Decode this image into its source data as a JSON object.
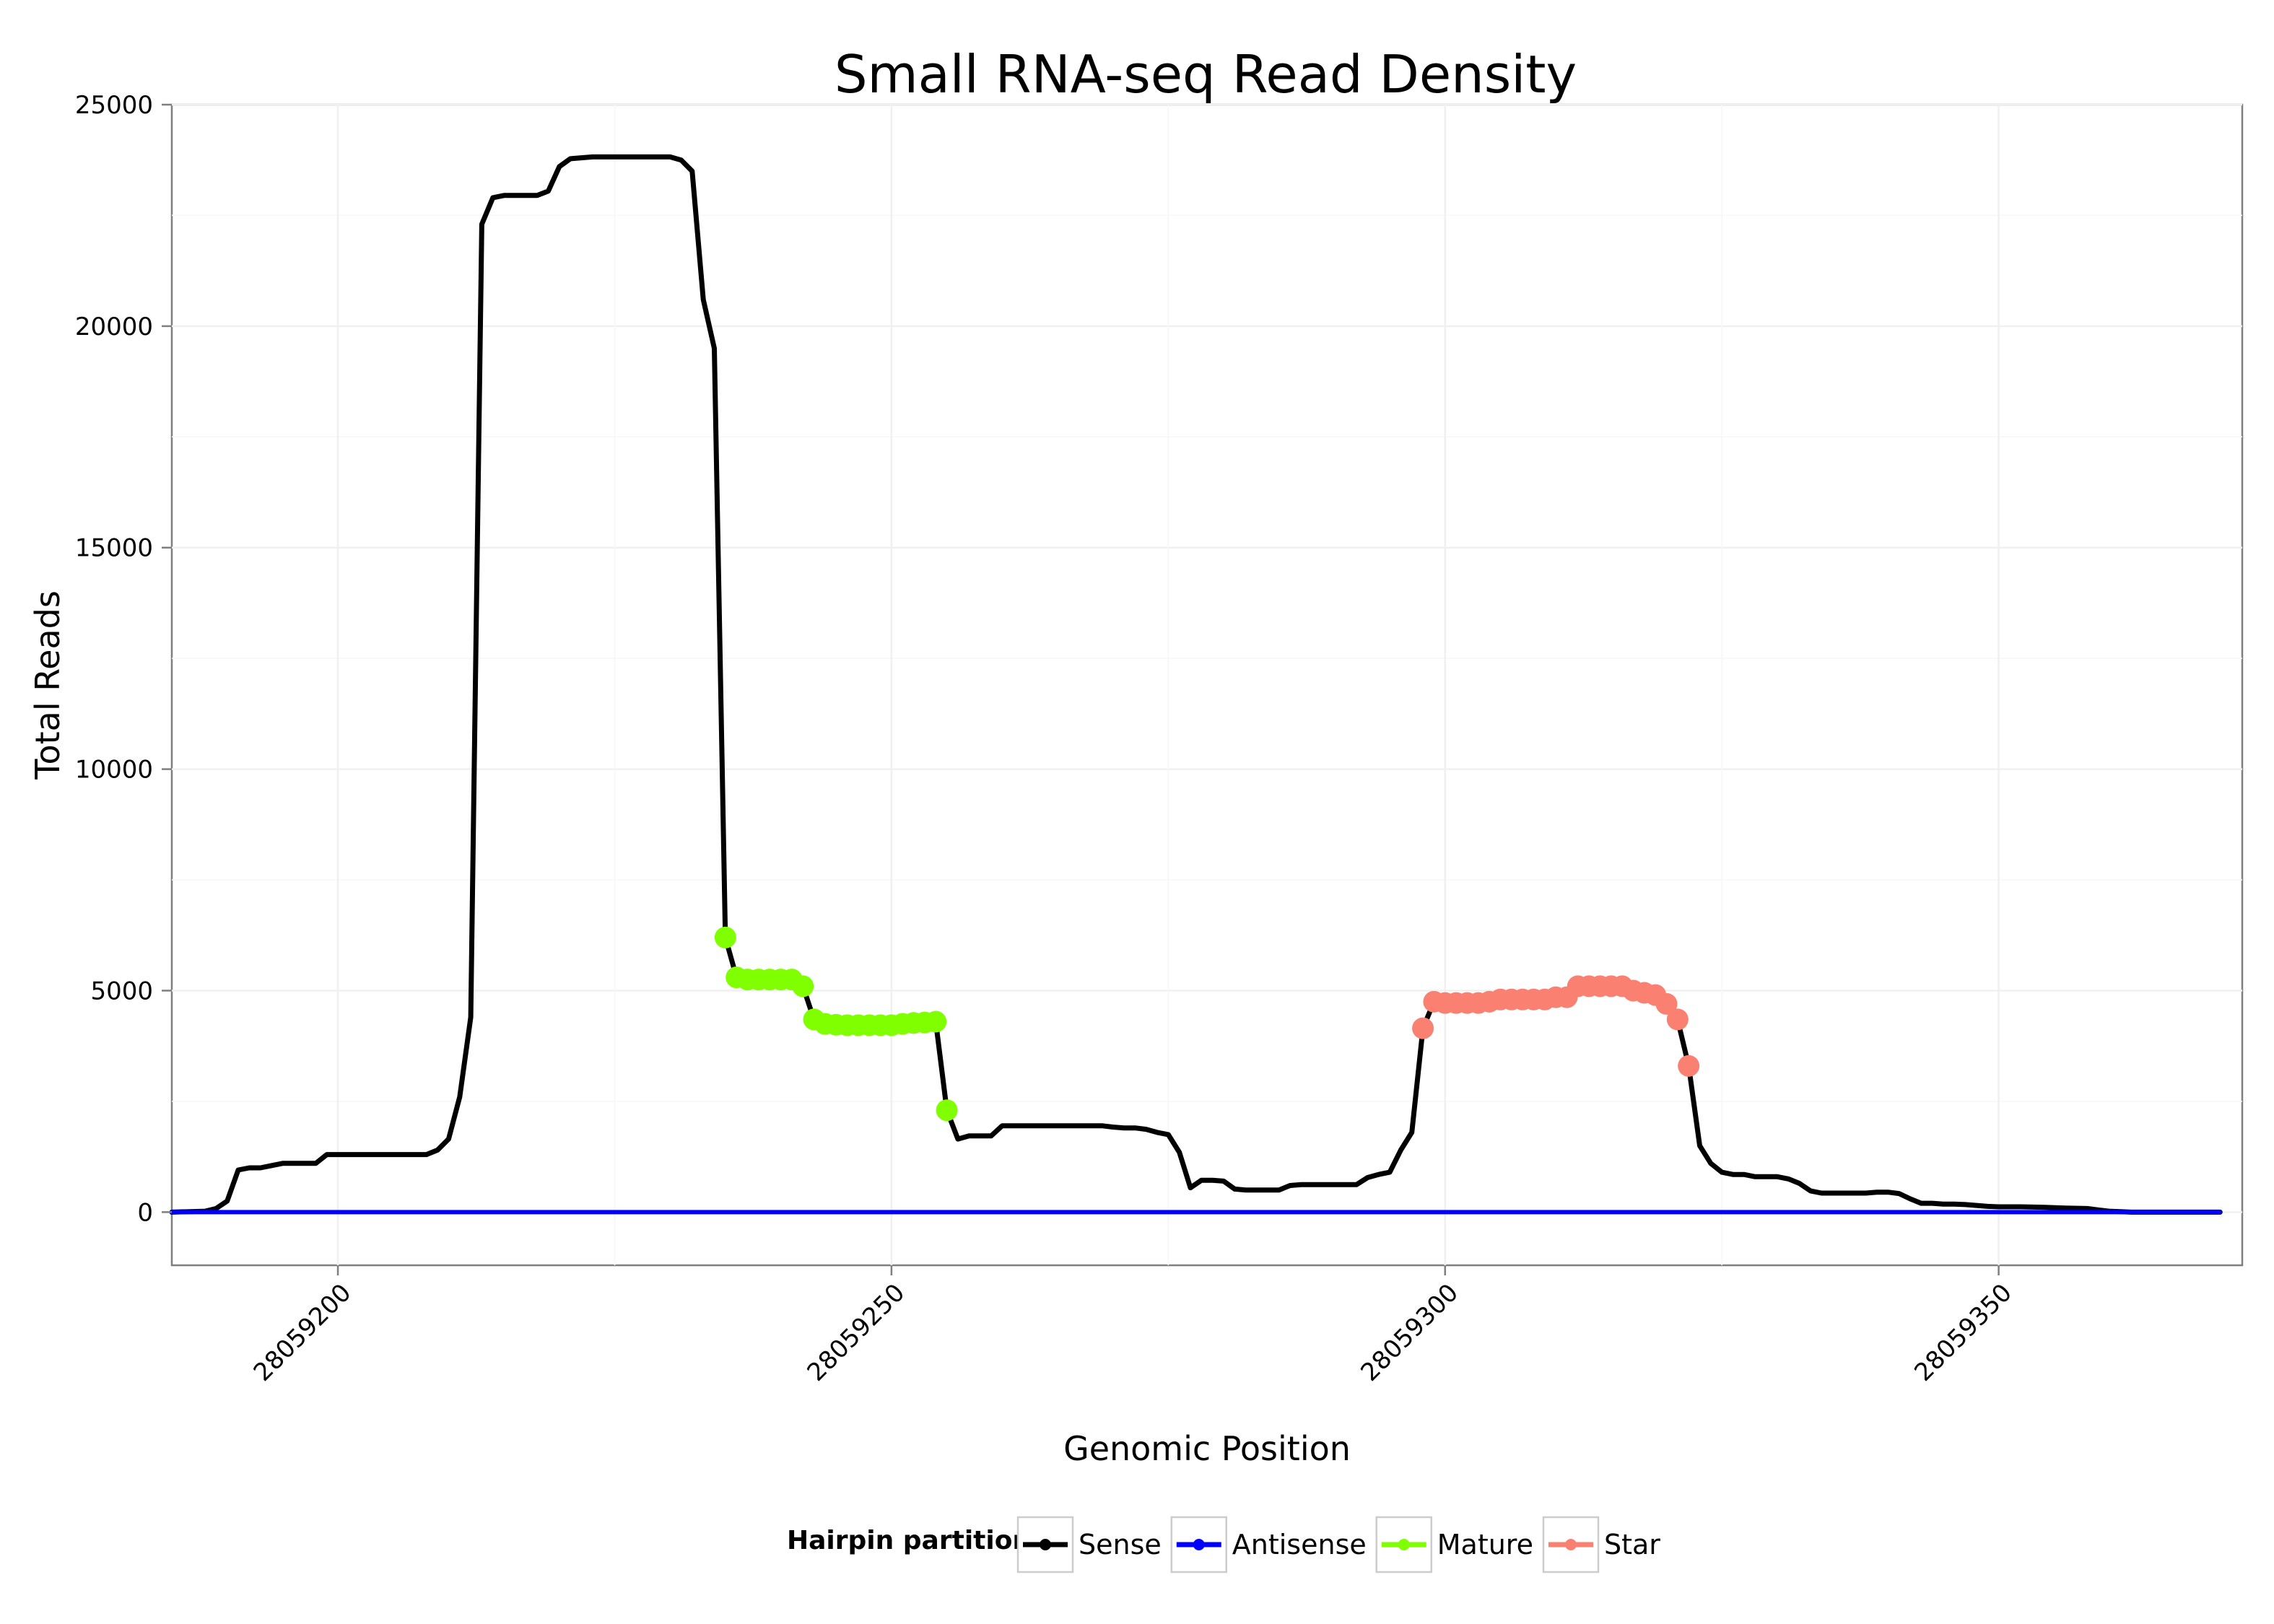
{
  "chart_data": {
    "type": "line",
    "title": "Small RNA-seq Read Density",
    "xlabel": "Genomic Position",
    "ylabel": "Total Reads",
    "xlim": [
      28059185,
      28059372
    ],
    "ylim": [
      -1200,
      25000
    ],
    "x_ticks": [
      28059200,
      28059250,
      28059300,
      28059350
    ],
    "x_tick_labels": [
      "28059200",
      "28059250",
      "28059300",
      "28059350"
    ],
    "y_ticks": [
      0,
      5000,
      10000,
      15000,
      20000,
      25000
    ],
    "y_tick_labels": [
      "0",
      "5000",
      "10000",
      "15000",
      "20000",
      "25000"
    ],
    "grid": true,
    "legend": {
      "title": "Hairpin partition",
      "position": "bottom",
      "entries": [
        "Sense",
        "Antisense",
        "Mature",
        "Star"
      ]
    },
    "series": [
      {
        "name": "Sense",
        "color": "#000000",
        "style": "line",
        "points": [
          [
            28059185,
            0
          ],
          [
            28059188,
            20
          ],
          [
            28059189,
            80
          ],
          [
            28059190,
            250
          ],
          [
            28059191,
            950
          ],
          [
            28059192,
            1000
          ],
          [
            28059193,
            1000
          ],
          [
            28059194,
            1050
          ],
          [
            28059195,
            1100
          ],
          [
            28059196,
            1100
          ],
          [
            28059197,
            1100
          ],
          [
            28059198,
            1100
          ],
          [
            28059199,
            1300
          ],
          [
            28059200,
            1300
          ],
          [
            28059201,
            1300
          ],
          [
            28059202,
            1300
          ],
          [
            28059203,
            1300
          ],
          [
            28059204,
            1300
          ],
          [
            28059205,
            1300
          ],
          [
            28059206,
            1300
          ],
          [
            28059207,
            1300
          ],
          [
            28059208,
            1300
          ],
          [
            28059209,
            1400
          ],
          [
            28059210,
            1650
          ],
          [
            28059211,
            2600
          ],
          [
            28059212,
            4400
          ],
          [
            28059213,
            22300
          ],
          [
            28059214,
            22900
          ],
          [
            28059215,
            22950
          ],
          [
            28059216,
            22950
          ],
          [
            28059217,
            22950
          ],
          [
            28059218,
            22950
          ],
          [
            28059219,
            23050
          ],
          [
            28059220,
            23600
          ],
          [
            28059221,
            23780
          ],
          [
            28059222,
            23800
          ],
          [
            28059223,
            23820
          ],
          [
            28059224,
            23820
          ],
          [
            28059225,
            23820
          ],
          [
            28059226,
            23820
          ],
          [
            28059227,
            23820
          ],
          [
            28059228,
            23820
          ],
          [
            28059229,
            23820
          ],
          [
            28059230,
            23820
          ],
          [
            28059231,
            23750
          ],
          [
            28059232,
            23500
          ],
          [
            28059233,
            20600
          ],
          [
            28059234,
            19500
          ],
          [
            28059235,
            6200
          ],
          [
            28059236,
            5300
          ],
          [
            28059237,
            5250
          ],
          [
            28059238,
            5250
          ],
          [
            28059239,
            5250
          ],
          [
            28059240,
            5250
          ],
          [
            28059241,
            5250
          ],
          [
            28059242,
            5100
          ],
          [
            28059243,
            4350
          ],
          [
            28059244,
            4250
          ],
          [
            28059245,
            4230
          ],
          [
            28059246,
            4220
          ],
          [
            28059247,
            4220
          ],
          [
            28059248,
            4220
          ],
          [
            28059249,
            4220
          ],
          [
            28059250,
            4220
          ],
          [
            28059251,
            4250
          ],
          [
            28059252,
            4270
          ],
          [
            28059253,
            4280
          ],
          [
            28059254,
            4300
          ],
          [
            28059255,
            2300
          ],
          [
            28059256,
            1650
          ],
          [
            28059257,
            1720
          ],
          [
            28059258,
            1720
          ],
          [
            28059259,
            1720
          ],
          [
            28059260,
            1950
          ],
          [
            28059261,
            1950
          ],
          [
            28059262,
            1950
          ],
          [
            28059263,
            1950
          ],
          [
            28059264,
            1950
          ],
          [
            28059265,
            1950
          ],
          [
            28059266,
            1950
          ],
          [
            28059267,
            1950
          ],
          [
            28059268,
            1950
          ],
          [
            28059269,
            1950
          ],
          [
            28059270,
            1920
          ],
          [
            28059271,
            1900
          ],
          [
            28059272,
            1900
          ],
          [
            28059273,
            1870
          ],
          [
            28059274,
            1800
          ],
          [
            28059275,
            1750
          ],
          [
            28059276,
            1350
          ],
          [
            28059277,
            550
          ],
          [
            28059278,
            720
          ],
          [
            28059279,
            720
          ],
          [
            28059280,
            700
          ],
          [
            28059281,
            520
          ],
          [
            28059282,
            500
          ],
          [
            28059283,
            500
          ],
          [
            28059284,
            500
          ],
          [
            28059285,
            500
          ],
          [
            28059286,
            600
          ],
          [
            28059287,
            620
          ],
          [
            28059288,
            620
          ],
          [
            28059289,
            620
          ],
          [
            28059290,
            620
          ],
          [
            28059291,
            620
          ],
          [
            28059292,
            620
          ],
          [
            28059293,
            780
          ],
          [
            28059294,
            850
          ],
          [
            28059295,
            900
          ],
          [
            28059296,
            1400
          ],
          [
            28059297,
            1800
          ],
          [
            28059298,
            4150
          ],
          [
            28059299,
            4750
          ],
          [
            28059300,
            4720
          ],
          [
            28059301,
            4720
          ],
          [
            28059302,
            4720
          ],
          [
            28059303,
            4720
          ],
          [
            28059304,
            4750
          ],
          [
            28059305,
            4800
          ],
          [
            28059306,
            4800
          ],
          [
            28059307,
            4800
          ],
          [
            28059308,
            4800
          ],
          [
            28059309,
            4800
          ],
          [
            28059310,
            4850
          ],
          [
            28059311,
            4850
          ],
          [
            28059312,
            5100
          ],
          [
            28059313,
            5100
          ],
          [
            28059314,
            5100
          ],
          [
            28059315,
            5100
          ],
          [
            28059316,
            5100
          ],
          [
            28059317,
            5000
          ],
          [
            28059318,
            4950
          ],
          [
            28059319,
            4900
          ],
          [
            28059320,
            4700
          ],
          [
            28059321,
            4350
          ],
          [
            28059322,
            3300
          ],
          [
            28059323,
            1500
          ],
          [
            28059324,
            1100
          ],
          [
            28059325,
            900
          ],
          [
            28059326,
            850
          ],
          [
            28059327,
            850
          ],
          [
            28059328,
            800
          ],
          [
            28059329,
            800
          ],
          [
            28059330,
            800
          ],
          [
            28059331,
            750
          ],
          [
            28059332,
            650
          ],
          [
            28059333,
            480
          ],
          [
            28059334,
            430
          ],
          [
            28059335,
            430
          ],
          [
            28059336,
            430
          ],
          [
            28059337,
            430
          ],
          [
            28059338,
            430
          ],
          [
            28059339,
            450
          ],
          [
            28059340,
            450
          ],
          [
            28059341,
            420
          ],
          [
            28059342,
            300
          ],
          [
            28059343,
            200
          ],
          [
            28059344,
            200
          ],
          [
            28059345,
            180
          ],
          [
            28059346,
            180
          ],
          [
            28059347,
            170
          ],
          [
            28059348,
            150
          ],
          [
            28059349,
            130
          ],
          [
            28059350,
            120
          ],
          [
            28059352,
            120
          ],
          [
            28059354,
            110
          ],
          [
            28059356,
            90
          ],
          [
            28059358,
            80
          ],
          [
            28059359,
            50
          ],
          [
            28059360,
            20
          ],
          [
            28059362,
            0
          ],
          [
            28059366,
            0
          ],
          [
            28059370,
            0
          ]
        ]
      },
      {
        "name": "Antisense",
        "color": "#0000ff",
        "style": "line",
        "points": [
          [
            28059185,
            0
          ],
          [
            28059370,
            0
          ]
        ]
      },
      {
        "name": "Mature",
        "color": "#7fff00",
        "style": "points",
        "points": [
          [
            28059235,
            6200
          ],
          [
            28059236,
            5300
          ],
          [
            28059237,
            5250
          ],
          [
            28059238,
            5250
          ],
          [
            28059239,
            5250
          ],
          [
            28059240,
            5250
          ],
          [
            28059241,
            5250
          ],
          [
            28059242,
            5100
          ],
          [
            28059243,
            4350
          ],
          [
            28059244,
            4250
          ],
          [
            28059245,
            4230
          ],
          [
            28059246,
            4220
          ],
          [
            28059247,
            4220
          ],
          [
            28059248,
            4220
          ],
          [
            28059249,
            4220
          ],
          [
            28059250,
            4220
          ],
          [
            28059251,
            4250
          ],
          [
            28059252,
            4270
          ],
          [
            28059253,
            4280
          ],
          [
            28059254,
            4300
          ],
          [
            28059255,
            2300
          ]
        ]
      },
      {
        "name": "Star",
        "color": "#fa8072",
        "style": "points",
        "points": [
          [
            28059298,
            4150
          ],
          [
            28059299,
            4750
          ],
          [
            28059300,
            4720
          ],
          [
            28059301,
            4720
          ],
          [
            28059302,
            4720
          ],
          [
            28059303,
            4720
          ],
          [
            28059304,
            4750
          ],
          [
            28059305,
            4800
          ],
          [
            28059306,
            4800
          ],
          [
            28059307,
            4800
          ],
          [
            28059308,
            4800
          ],
          [
            28059309,
            4800
          ],
          [
            28059310,
            4850
          ],
          [
            28059311,
            4850
          ],
          [
            28059312,
            5100
          ],
          [
            28059313,
            5100
          ],
          [
            28059314,
            5100
          ],
          [
            28059315,
            5100
          ],
          [
            28059316,
            5100
          ],
          [
            28059317,
            5000
          ],
          [
            28059318,
            4950
          ],
          [
            28059319,
            4900
          ],
          [
            28059320,
            4700
          ],
          [
            28059321,
            4350
          ],
          [
            28059322,
            3300
          ]
        ]
      }
    ]
  }
}
